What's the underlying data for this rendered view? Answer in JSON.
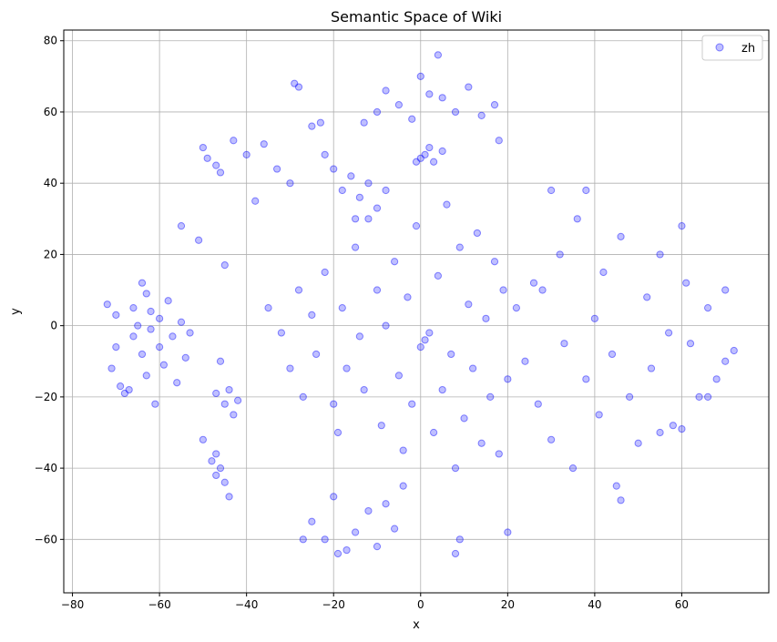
{
  "chart_data": {
    "type": "scatter",
    "title": "Semantic Space of Wiki",
    "xlabel": "x",
    "ylabel": "y",
    "xlim": [
      -82,
      80
    ],
    "ylim": [
      -75,
      83
    ],
    "xticks": [
      -80,
      -60,
      -40,
      -20,
      0,
      20,
      40,
      60
    ],
    "yticks": [
      -60,
      -40,
      -20,
      0,
      20,
      40,
      60,
      80
    ],
    "xtick_labels": [
      "−80",
      "−60",
      "−40",
      "−20",
      "0",
      "20",
      "40",
      "60"
    ],
    "ytick_labels": [
      "−60",
      "−40",
      "−20",
      "0",
      "20",
      "40",
      "60",
      "80"
    ],
    "grid": true,
    "legend_position": "top-right",
    "series": [
      {
        "name": "zh",
        "color": "#0000ff",
        "alpha": 0.25,
        "points": [
          [
            -72,
            6
          ],
          [
            -71,
            -12
          ],
          [
            -70,
            3
          ],
          [
            -69,
            -17
          ],
          [
            -68,
            -19
          ],
          [
            -67,
            -18
          ],
          [
            -66,
            -3
          ],
          [
            -66,
            5
          ],
          [
            -65,
            0
          ],
          [
            -64,
            -8
          ],
          [
            -63,
            9
          ],
          [
            -63,
            -14
          ],
          [
            -62,
            4
          ],
          [
            -61,
            -22
          ],
          [
            -60,
            -6
          ],
          [
            -60,
            2
          ],
          [
            -59,
            -11
          ],
          [
            -58,
            7
          ],
          [
            -57,
            -3
          ],
          [
            -56,
            -16
          ],
          [
            -55,
            1
          ],
          [
            -54,
            -9
          ],
          [
            -53,
            -2
          ],
          [
            -62,
            -1
          ],
          [
            -64,
            12
          ],
          [
            -70,
            -6
          ],
          [
            -48,
            -38
          ],
          [
            -47,
            -42
          ],
          [
            -46,
            -40
          ],
          [
            -45,
            -44
          ],
          [
            -47,
            -36
          ],
          [
            -44,
            -48
          ],
          [
            -50,
            -32
          ],
          [
            -47,
            -19
          ],
          [
            -45,
            -22
          ],
          [
            -44,
            -18
          ],
          [
            -43,
            -25
          ],
          [
            -42,
            -21
          ],
          [
            -46,
            -10
          ],
          [
            -50,
            50
          ],
          [
            -49,
            47
          ],
          [
            -47,
            45
          ],
          [
            -46,
            43
          ],
          [
            -43,
            52
          ],
          [
            -40,
            48
          ],
          [
            -36,
            51
          ],
          [
            -33,
            44
          ],
          [
            -30,
            40
          ],
          [
            -55,
            28
          ],
          [
            -51,
            24
          ],
          [
            -45,
            17
          ],
          [
            -38,
            35
          ],
          [
            -29,
            68
          ],
          [
            -28,
            67
          ],
          [
            -25,
            56
          ],
          [
            -23,
            57
          ],
          [
            -22,
            48
          ],
          [
            -35,
            5
          ],
          [
            -32,
            -2
          ],
          [
            -30,
            -12
          ],
          [
            -28,
            10
          ],
          [
            -27,
            -20
          ],
          [
            -25,
            3
          ],
          [
            -24,
            -8
          ],
          [
            -22,
            15
          ],
          [
            -20,
            -22
          ],
          [
            -19,
            -30
          ],
          [
            -18,
            5
          ],
          [
            -17,
            -12
          ],
          [
            -15,
            22
          ],
          [
            -14,
            -3
          ],
          [
            -13,
            -18
          ],
          [
            -12,
            30
          ],
          [
            -10,
            10
          ],
          [
            -9,
            -28
          ],
          [
            -8,
            0
          ],
          [
            -6,
            18
          ],
          [
            -5,
            -14
          ],
          [
            -4,
            -35
          ],
          [
            -3,
            8
          ],
          [
            -2,
            -22
          ],
          [
            -1,
            28
          ],
          [
            0,
            -6
          ],
          [
            1,
            -4
          ],
          [
            2,
            -2
          ],
          [
            3,
            -30
          ],
          [
            4,
            14
          ],
          [
            5,
            -18
          ],
          [
            6,
            34
          ],
          [
            7,
            -8
          ],
          [
            8,
            -40
          ],
          [
            9,
            22
          ],
          [
            10,
            -26
          ],
          [
            11,
            6
          ],
          [
            12,
            -12
          ],
          [
            13,
            26
          ],
          [
            14,
            -33
          ],
          [
            15,
            2
          ],
          [
            16,
            -20
          ],
          [
            17,
            18
          ],
          [
            18,
            -36
          ],
          [
            19,
            10
          ],
          [
            20,
            -15
          ],
          [
            -18,
            38
          ],
          [
            -16,
            42
          ],
          [
            -14,
            36
          ],
          [
            -12,
            40
          ],
          [
            -10,
            33
          ],
          [
            -8,
            38
          ],
          [
            -15,
            30
          ],
          [
            -20,
            44
          ],
          [
            0,
            47
          ],
          [
            1,
            48
          ],
          [
            3,
            46
          ],
          [
            5,
            49
          ],
          [
            -1,
            46
          ],
          [
            2,
            50
          ],
          [
            -10,
            60
          ],
          [
            -8,
            66
          ],
          [
            -5,
            62
          ],
          [
            -2,
            58
          ],
          [
            0,
            70
          ],
          [
            2,
            65
          ],
          [
            5,
            64
          ],
          [
            8,
            60
          ],
          [
            11,
            67
          ],
          [
            14,
            59
          ],
          [
            17,
            62
          ],
          [
            -13,
            57
          ],
          [
            4,
            76
          ],
          [
            18,
            52
          ],
          [
            -25,
            -55
          ],
          [
            -22,
            -60
          ],
          [
            -19,
            -64
          ],
          [
            -17,
            -63
          ],
          [
            -15,
            -58
          ],
          [
            -12,
            -52
          ],
          [
            -10,
            -62
          ],
          [
            -8,
            -50
          ],
          [
            -6,
            -57
          ],
          [
            -4,
            -45
          ],
          [
            -20,
            -48
          ],
          [
            -27,
            -60
          ],
          [
            9,
            -60
          ],
          [
            8,
            -64
          ],
          [
            22,
            5
          ],
          [
            24,
            -10
          ],
          [
            26,
            12
          ],
          [
            27,
            -22
          ],
          [
            28,
            10
          ],
          [
            30,
            -32
          ],
          [
            32,
            20
          ],
          [
            33,
            -5
          ],
          [
            35,
            -40
          ],
          [
            36,
            30
          ],
          [
            38,
            -15
          ],
          [
            40,
            2
          ],
          [
            41,
            -25
          ],
          [
            42,
            15
          ],
          [
            44,
            -8
          ],
          [
            45,
            -45
          ],
          [
            46,
            25
          ],
          [
            48,
            -20
          ],
          [
            50,
            -33
          ],
          [
            52,
            8
          ],
          [
            53,
            -12
          ],
          [
            55,
            20
          ],
          [
            57,
            -2
          ],
          [
            58,
            -28
          ],
          [
            60,
            28
          ],
          [
            61,
            12
          ],
          [
            62,
            -5
          ],
          [
            64,
            -20
          ],
          [
            66,
            5
          ],
          [
            68,
            -15
          ],
          [
            70,
            -10
          ],
          [
            72,
            -7
          ],
          [
            70,
            10
          ],
          [
            66,
            -20
          ],
          [
            60,
            -29
          ],
          [
            55,
            -30
          ],
          [
            20,
            -58
          ],
          [
            30,
            38
          ],
          [
            38,
            38
          ],
          [
            46,
            -49
          ]
        ]
      }
    ]
  }
}
